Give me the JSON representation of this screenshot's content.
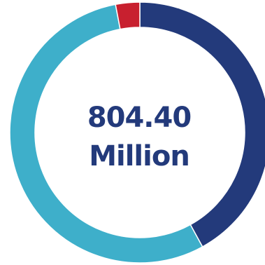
{
  "chart_data": {
    "type": "pie",
    "variant": "donut",
    "center_value": "804.40",
    "center_unit": "Million",
    "slices": [
      {
        "share": 0.42,
        "color": "#233A7B"
      },
      {
        "share": 0.55,
        "color": "#3EAFCA"
      },
      {
        "share": 0.03,
        "color": "#C8202F"
      }
    ],
    "center_text_color": "#233A7B"
  }
}
